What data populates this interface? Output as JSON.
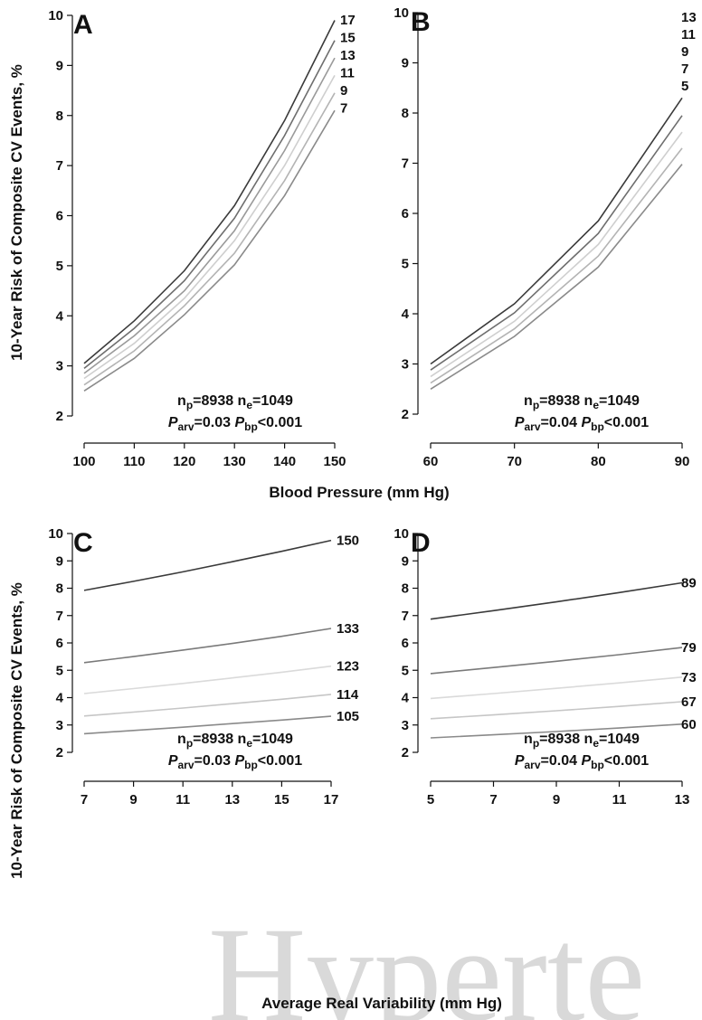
{
  "figure": {
    "x_axis_title_top": "Blood Pressure (mm Hg)",
    "x_axis_title_bottom": "Average Real Variability (mm Hg)",
    "y_axis_title": "10-Year Risk of Composite CV Events, %",
    "watermark": "Hyperte"
  },
  "chart_data": [
    {
      "panel": "A",
      "type": "line",
      "x": [
        100,
        110,
        120,
        130,
        140,
        150
      ],
      "xticks": [
        "100",
        "110",
        "120",
        "130",
        "140",
        "150"
      ],
      "xlim": [
        100,
        150
      ],
      "ylim": [
        2,
        10
      ],
      "yticks": [
        "2",
        "3",
        "4",
        "5",
        "6",
        "7",
        "8",
        "9",
        "10"
      ],
      "series": [
        {
          "name": "17",
          "color": "#3a3a3a",
          "values": [
            3.05,
            3.9,
            4.9,
            6.2,
            7.9,
            9.9
          ]
        },
        {
          "name": "15",
          "color": "#6e6e6e",
          "values": [
            2.95,
            3.75,
            4.7,
            5.95,
            7.6,
            9.5
          ]
        },
        {
          "name": "13",
          "color": "#9a9a9a",
          "values": [
            2.85,
            3.6,
            4.5,
            5.7,
            7.3,
            9.15
          ]
        },
        {
          "name": "11",
          "color": "#cfcfcf",
          "values": [
            2.75,
            3.45,
            4.35,
            5.5,
            7.0,
            8.8
          ]
        },
        {
          "name": "9",
          "color": "#b4b4b4",
          "values": [
            2.62,
            3.3,
            4.2,
            5.25,
            6.7,
            8.45
          ]
        },
        {
          "name": "7",
          "color": "#8a8a8a",
          "values": [
            2.5,
            3.15,
            4.02,
            5.02,
            6.4,
            8.1
          ]
        }
      ],
      "stats": {
        "np": "8938",
        "ne": "1049",
        "parv": "0.03",
        "pbp": "<0.001"
      }
    },
    {
      "panel": "B",
      "type": "line",
      "x": [
        60,
        70,
        80,
        90
      ],
      "xticks": [
        "60",
        "70",
        "80",
        "90"
      ],
      "xlim": [
        60,
        90
      ],
      "ylim": [
        2,
        10
      ],
      "yticks": [
        "2",
        "3",
        "4",
        "5",
        "6",
        "7",
        "8",
        "9",
        "10"
      ],
      "series": [
        {
          "name": "13",
          "color": "#3a3a3a",
          "values": [
            3.0,
            4.2,
            5.85,
            8.3
          ]
        },
        {
          "name": "11",
          "color": "#6e6e6e",
          "values": [
            2.88,
            4.02,
            5.6,
            7.95
          ]
        },
        {
          "name": "9",
          "color": "#cfcfcf",
          "values": [
            2.75,
            3.85,
            5.38,
            7.62
          ]
        },
        {
          "name": "7",
          "color": "#b4b4b4",
          "values": [
            2.62,
            3.7,
            5.15,
            7.3
          ]
        },
        {
          "name": "5",
          "color": "#8a8a8a",
          "values": [
            2.5,
            3.55,
            4.93,
            6.98
          ]
        }
      ],
      "stats": {
        "np": "8938",
        "ne": "1049",
        "parv": "0.04",
        "pbp": "<0.001"
      }
    },
    {
      "panel": "C",
      "type": "line",
      "x": [
        7,
        9,
        11,
        13,
        15,
        17
      ],
      "xticks": [
        "7",
        "9",
        "11",
        "13",
        "15",
        "17"
      ],
      "xlim": [
        7,
        17
      ],
      "ylim": [
        2,
        10
      ],
      "yticks": [
        "2",
        "3",
        "4",
        "5",
        "6",
        "7",
        "8",
        "9",
        "10"
      ],
      "series": [
        {
          "name": "150",
          "color": "#3a3a3a",
          "values": [
            7.92,
            8.25,
            8.6,
            8.97,
            9.35,
            9.75
          ]
        },
        {
          "name": "133",
          "color": "#7a7a7a",
          "values": [
            5.28,
            5.5,
            5.74,
            5.98,
            6.24,
            6.53
          ]
        },
        {
          "name": "123",
          "color": "#dadada",
          "values": [
            4.15,
            4.33,
            4.52,
            4.72,
            4.93,
            5.15
          ]
        },
        {
          "name": "114",
          "color": "#c6c6c6",
          "values": [
            3.33,
            3.47,
            3.62,
            3.78,
            3.94,
            4.12
          ]
        },
        {
          "name": "105",
          "color": "#8a8a8a",
          "values": [
            2.68,
            2.8,
            2.92,
            3.05,
            3.18,
            3.32
          ]
        }
      ],
      "stats": {
        "np": "8938",
        "ne": "1049",
        "parv": "0.03",
        "pbp": "<0.001"
      }
    },
    {
      "panel": "D",
      "type": "line",
      "x": [
        5,
        7,
        9,
        11,
        13
      ],
      "xticks": [
        "5",
        "7",
        "9",
        "11",
        "13"
      ],
      "xlim": [
        5,
        13
      ],
      "ylim": [
        2,
        10
      ],
      "yticks": [
        "2",
        "3",
        "4",
        "5",
        "6",
        "7",
        "8",
        "9",
        "10"
      ],
      "series": [
        {
          "name": "89",
          "color": "#3a3a3a",
          "values": [
            6.87,
            7.18,
            7.5,
            7.84,
            8.2
          ]
        },
        {
          "name": "79",
          "color": "#7a7a7a",
          "values": [
            4.88,
            5.1,
            5.33,
            5.57,
            5.83
          ]
        },
        {
          "name": "73",
          "color": "#dadada",
          "values": [
            3.97,
            4.15,
            4.34,
            4.54,
            4.75
          ]
        },
        {
          "name": "67",
          "color": "#c6c6c6",
          "values": [
            3.23,
            3.37,
            3.52,
            3.68,
            3.85
          ]
        },
        {
          "name": "60",
          "color": "#8a8a8a",
          "values": [
            2.53,
            2.64,
            2.76,
            2.89,
            3.03
          ]
        }
      ],
      "stats": {
        "np": "8938",
        "ne": "1049",
        "parv": "0.04",
        "pbp": "<0.001"
      }
    }
  ]
}
